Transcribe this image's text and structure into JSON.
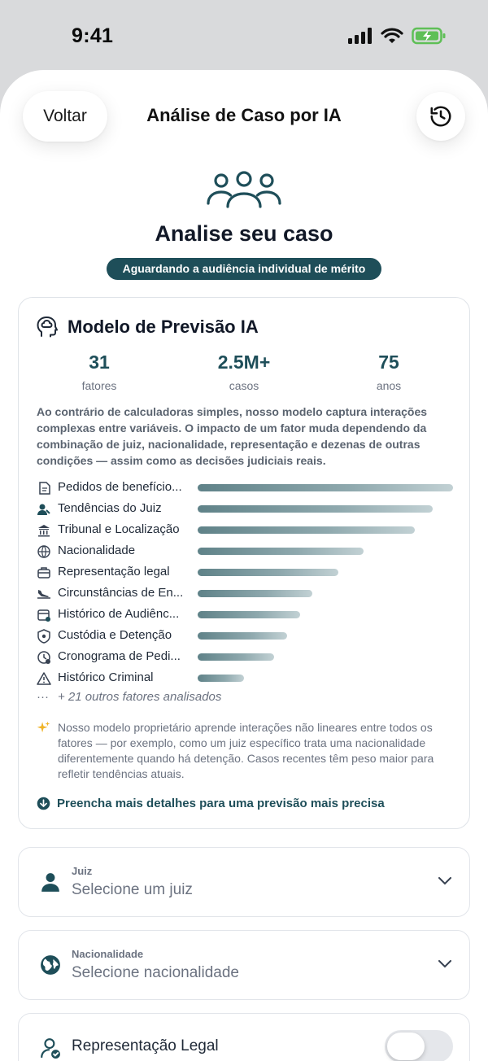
{
  "status_bar": {
    "time": "9:41"
  },
  "header": {
    "back_label": "Voltar",
    "title": "Análise de Caso por IA"
  },
  "hero": {
    "title": "Analise seu caso",
    "status": "Aguardando a audiência individual de mérito"
  },
  "model": {
    "title": "Modelo de Previsão IA",
    "stats": [
      {
        "value": "31",
        "label": "fatores"
      },
      {
        "value": "2.5M+",
        "label": "casos"
      },
      {
        "value": "75",
        "label": "anos"
      }
    ],
    "description": "Ao contrário de calculadoras simples, nosso modelo captura interações complexas entre variáveis. O impacto de um fator muda dependendo da combinação de juiz, nacionalidade, representação e dezenas de outras condições — assim como as decisões judiciais reais.",
    "factors": [
      {
        "label": "Pedidos de benefício...",
        "icon": "document-icon",
        "weight": 1.0
      },
      {
        "label": "Tendências do Juiz",
        "icon": "judge-icon",
        "weight": 0.92
      },
      {
        "label": "Tribunal e Localização",
        "icon": "courthouse-icon",
        "weight": 0.85
      },
      {
        "label": "Nacionalidade",
        "icon": "globe-icon",
        "weight": 0.65
      },
      {
        "label": "Representação legal",
        "icon": "briefcase-icon",
        "weight": 0.55
      },
      {
        "label": "Circunstâncias de En...",
        "icon": "plane-landing-icon",
        "weight": 0.45
      },
      {
        "label": "Histórico de Audiênc...",
        "icon": "calendar-icon",
        "weight": 0.4
      },
      {
        "label": "Custódia e Detenção",
        "icon": "shield-icon",
        "weight": 0.35
      },
      {
        "label": "Cronograma de Pedi...",
        "icon": "clock-icon",
        "weight": 0.3
      },
      {
        "label": "Histórico Criminal",
        "icon": "warning-icon",
        "weight": 0.18
      }
    ],
    "more_factors": "+ 21 outros fatores analisados",
    "note": "Nosso modelo proprietário aprende interações não lineares entre todos os fatores — por exemplo, como um juiz específico trata uma nacionalidade diferentemente quando há detenção. Casos recentes têm peso maior para refletir tendências atuais.",
    "cta": "Preencha mais detalhes para uma previsão mais precisa"
  },
  "form": {
    "judge": {
      "label": "Juiz",
      "placeholder": "Selecione um juiz"
    },
    "nationality": {
      "label": "Nacionalidade",
      "placeholder": "Selecione nacionalidade"
    },
    "representation": {
      "label": "Representação Legal",
      "enabled": false
    }
  },
  "colors": {
    "accent": "#1e4e59",
    "bar_start": "#5f8288",
    "bar_end": "#c2d1d4"
  }
}
